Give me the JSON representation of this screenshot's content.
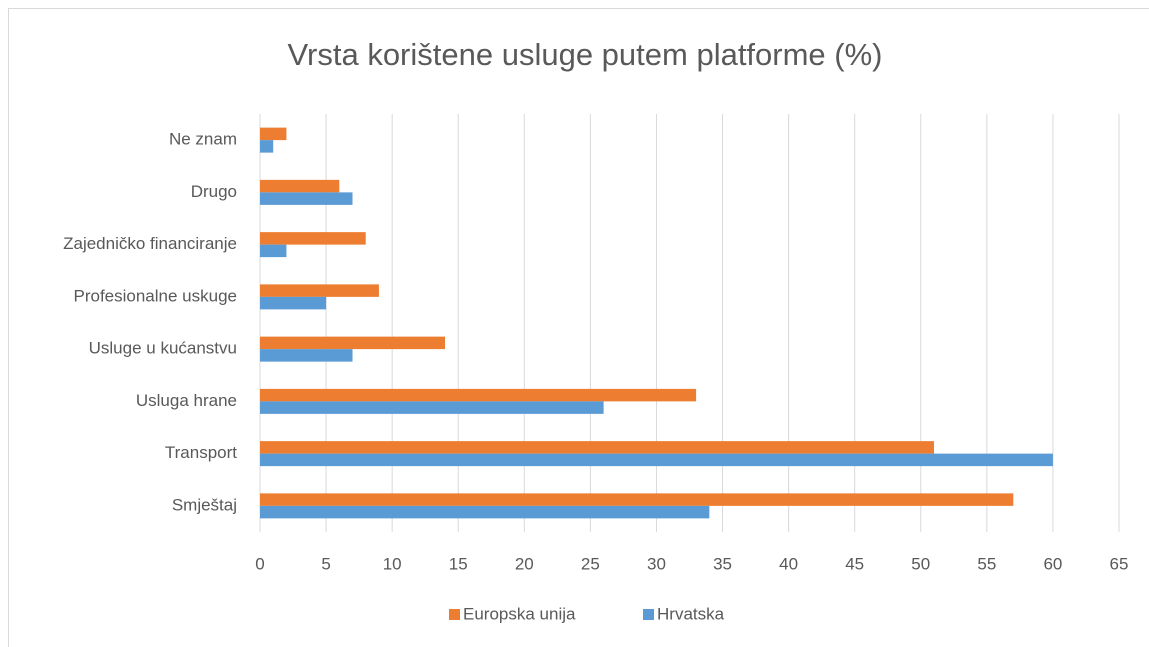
{
  "chart_data": {
    "type": "bar",
    "orientation": "horizontal",
    "title": "Vrsta korištene usluge putem platforme (%)",
    "categories": [
      "Smještaj",
      "Transport",
      "Usluga hrane",
      "Usluge u kućanstvu",
      "Profesionalne uskuge",
      "Zajedničko financiranje",
      "Drugo",
      "Ne znam"
    ],
    "series": [
      {
        "name": "Europska unija",
        "color": "#ed7d31",
        "values": [
          57,
          51,
          33,
          14,
          9,
          8,
          6,
          2
        ]
      },
      {
        "name": "Hrvatska",
        "color": "#5b9bd5",
        "values": [
          34,
          60,
          26,
          7,
          5,
          2,
          7,
          1
        ]
      }
    ],
    "xlim": [
      0,
      65
    ],
    "xticks": [
      0,
      5,
      10,
      15,
      20,
      25,
      30,
      35,
      40,
      45,
      50,
      55,
      60,
      65
    ],
    "grid": true,
    "legend": "bottom"
  }
}
